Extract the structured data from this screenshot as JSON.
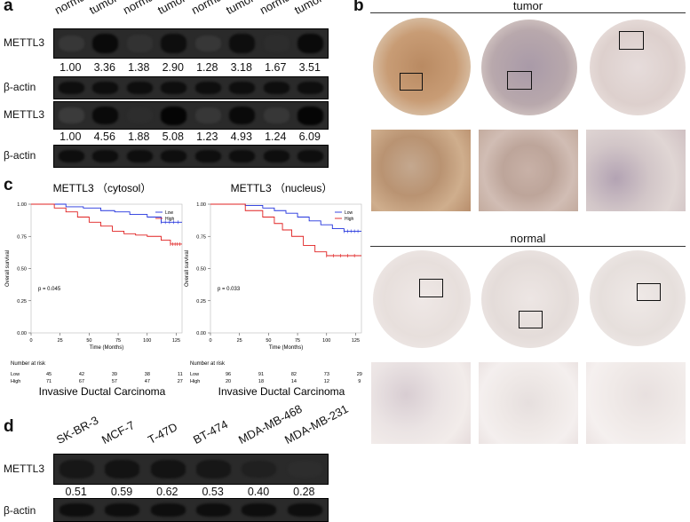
{
  "panel_a": {
    "letter": "a",
    "lanes": [
      "normal",
      "tumor",
      "normal",
      "tumor",
      "normal",
      "tumor",
      "normal",
      "tumor"
    ],
    "rows": [
      "METTL3",
      "β-actin",
      "METTL3",
      "β-actin"
    ],
    "values_1": [
      "1.00",
      "3.36",
      "1.38",
      "2.90",
      "1.28",
      "3.18",
      "1.67",
      "3.51"
    ],
    "values_2": [
      "1.00",
      "4.56",
      "1.88",
      "5.08",
      "1.23",
      "4.93",
      "1.24",
      "6.09"
    ],
    "metl3_intensity_1": [
      0.45,
      0.95,
      0.5,
      0.9,
      0.45,
      0.9,
      0.55,
      0.95
    ],
    "metl3_intensity_2": [
      0.4,
      0.95,
      0.55,
      1.0,
      0.45,
      0.95,
      0.45,
      1.0
    ]
  },
  "panel_b": {
    "letter": "b",
    "tumor_label": "tumor",
    "normal_label": "normal"
  },
  "panel_c": {
    "letter": "c",
    "number_at_risk": "Number at risk",
    "chart_data": [
      {
        "type": "line",
        "title": "METTL3 （cytosol）",
        "xlabel": "Time (Months)",
        "ylabel": "Overall survival",
        "xlim": [
          0,
          130
        ],
        "ylim": [
          0,
          1
        ],
        "xticks": [
          "0",
          "25",
          "50",
          "75",
          "100",
          "125"
        ],
        "yticks": [
          "0.00",
          "0.25",
          "0.50",
          "0.75",
          "1.00"
        ],
        "legend": [
          "Low",
          "High"
        ],
        "pvalue": "p = 0.045",
        "series": [
          {
            "name": "Low",
            "color": "#2233dd",
            "x": [
              0,
              18,
              30,
              45,
              60,
              72,
              85,
              100,
              112,
              130
            ],
            "y": [
              1.0,
              1.0,
              0.98,
              0.97,
              0.95,
              0.94,
              0.92,
              0.9,
              0.86,
              0.86
            ]
          },
          {
            "name": "High",
            "color": "#e02020",
            "x": [
              0,
              20,
              30,
              40,
              50,
              60,
              70,
              80,
              90,
              100,
              112,
              120,
              130
            ],
            "y": [
              1.0,
              0.97,
              0.94,
              0.9,
              0.86,
              0.83,
              0.79,
              0.77,
              0.76,
              0.75,
              0.72,
              0.69,
              0.69
            ]
          }
        ],
        "risk_rows": [
          {
            "label": "Low",
            "values": [
              "45",
              "42",
              "39",
              "38",
              "11"
            ]
          },
          {
            "label": "High",
            "values": [
              "71",
              "67",
              "57",
              "47",
              "27"
            ]
          }
        ],
        "caption": "Invasive Ductal Carcinoma"
      },
      {
        "type": "line",
        "title": "METTL3 （nucleus）",
        "xlabel": "Time (Months)",
        "ylabel": "Overall survival",
        "xlim": [
          0,
          130
        ],
        "ylim": [
          0,
          1
        ],
        "xticks": [
          "0",
          "25",
          "50",
          "75",
          "100",
          "125"
        ],
        "yticks": [
          "0.00",
          "0.25",
          "0.50",
          "0.75",
          "1.00"
        ],
        "legend": [
          "Low",
          "High"
        ],
        "pvalue": "p = 0.033",
        "series": [
          {
            "name": "Low",
            "color": "#2233dd",
            "x": [
              0,
              18,
              30,
              45,
              55,
              65,
              75,
              85,
              95,
              105,
              115,
              130
            ],
            "y": [
              1.0,
              1.0,
              0.99,
              0.97,
              0.95,
              0.93,
              0.9,
              0.87,
              0.84,
              0.81,
              0.79,
              0.79
            ]
          },
          {
            "name": "High",
            "color": "#e02020",
            "x": [
              0,
              30,
              45,
              55,
              62,
              70,
              80,
              90,
              100,
              130
            ],
            "y": [
              1.0,
              0.95,
              0.9,
              0.85,
              0.8,
              0.75,
              0.68,
              0.63,
              0.6,
              0.6
            ]
          }
        ],
        "risk_rows": [
          {
            "label": "Low",
            "values": [
              "96",
              "91",
              "82",
              "73",
              "29"
            ]
          },
          {
            "label": "High",
            "values": [
              "20",
              "18",
              "14",
              "12",
              "9"
            ]
          }
        ],
        "caption": "Invasive Ductal Carcinoma"
      }
    ]
  },
  "panel_d": {
    "letter": "d",
    "lanes": [
      "SK-BR-3",
      "MCF-7",
      "T-47D",
      "BT-474",
      "MDA-MB-468",
      "MDA-MB-231"
    ],
    "rows": [
      "METTL3",
      "β-actin"
    ],
    "values": [
      "0.51",
      "0.59",
      "0.62",
      "0.53",
      "0.40",
      "0.28"
    ],
    "metl3_intensity": [
      0.8,
      0.85,
      0.85,
      0.8,
      0.7,
      0.55
    ]
  }
}
